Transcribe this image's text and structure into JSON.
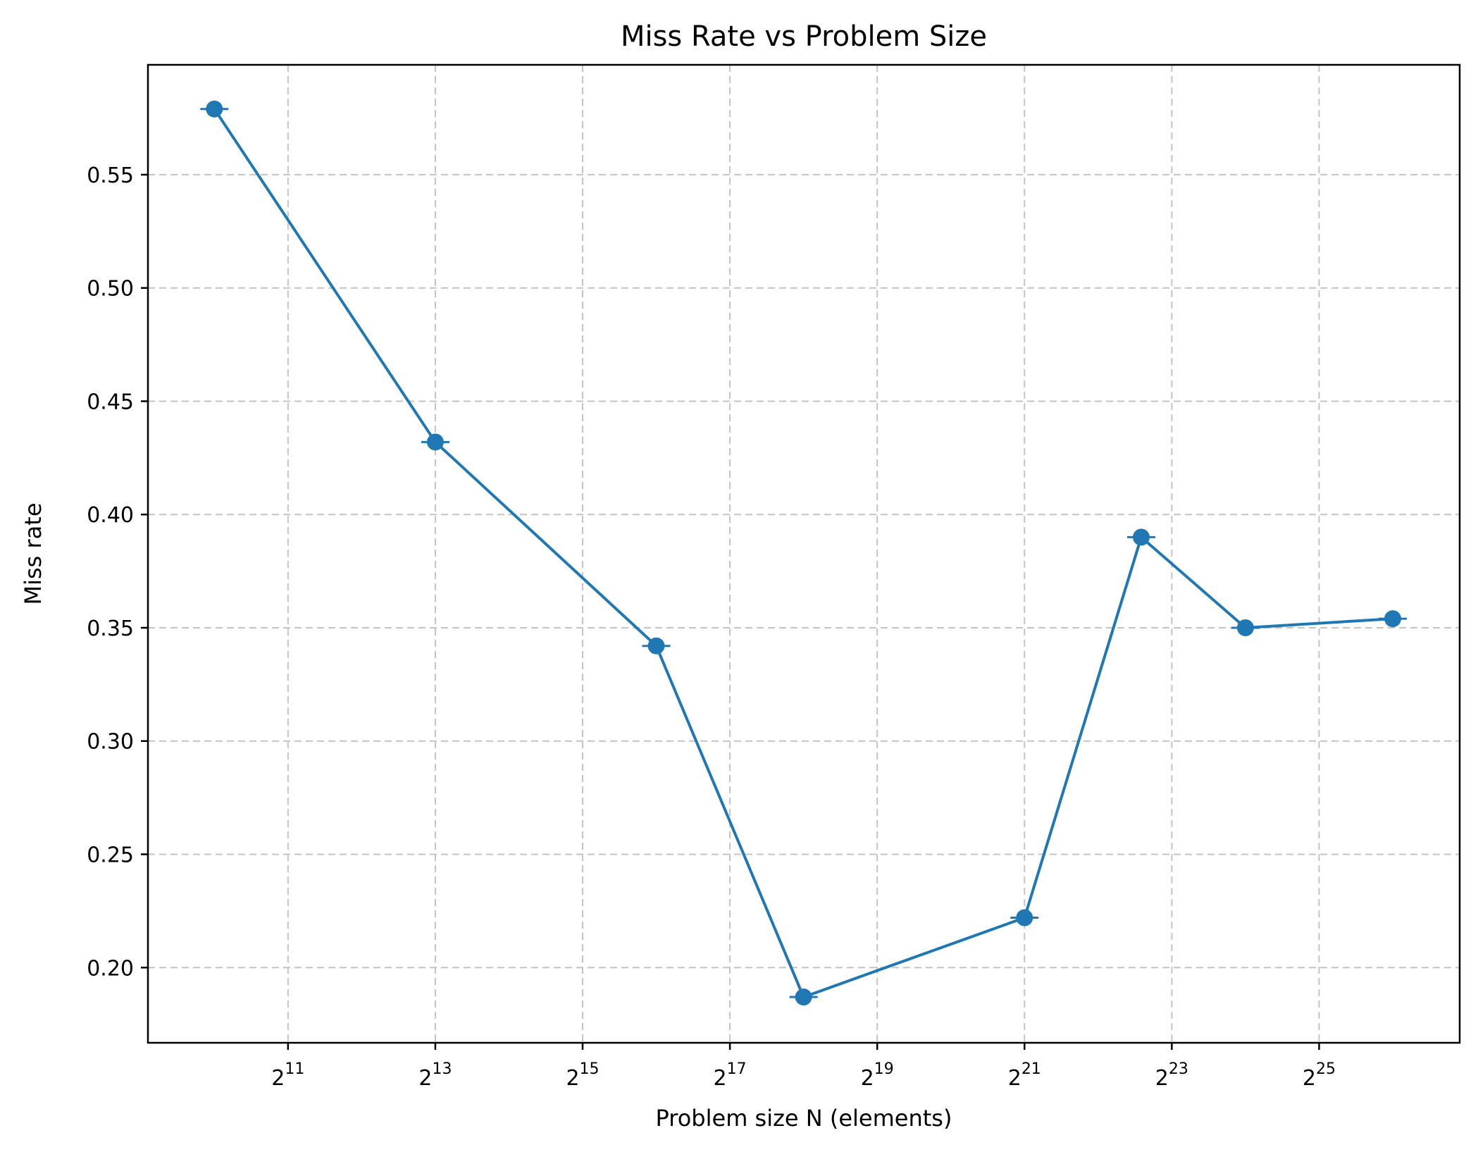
{
  "chart_data": {
    "type": "line",
    "title": "Miss Rate vs Problem Size",
    "xlabel": "Problem size N (elements)",
    "ylabel": "Miss rate",
    "x_scale": "log2",
    "x_ticks": [
      {
        "base": "2",
        "exp": "11",
        "value": 2048
      },
      {
        "base": "2",
        "exp": "13",
        "value": 8192
      },
      {
        "base": "2",
        "exp": "15",
        "value": 32768
      },
      {
        "base": "2",
        "exp": "17",
        "value": 131072
      },
      {
        "base": "2",
        "exp": "19",
        "value": 524288
      },
      {
        "base": "2",
        "exp": "21",
        "value": 2097152
      },
      {
        "base": "2",
        "exp": "23",
        "value": 8388608
      },
      {
        "base": "2",
        "exp": "25",
        "value": 33554432
      }
    ],
    "y_ticks": [
      "0.20",
      "0.25",
      "0.30",
      "0.35",
      "0.40",
      "0.45",
      "0.50",
      "0.55"
    ],
    "xlim": [
      548,
      126000000
    ],
    "ylim": [
      0.1668,
      0.5985
    ],
    "grid": true,
    "color": "#1f77b4",
    "series": [
      {
        "x": [
          1024,
          8192,
          65536,
          262144,
          2097152,
          6291456,
          16777216,
          67108864
        ],
        "y": [
          0.579,
          0.432,
          0.342,
          0.187,
          0.222,
          0.39,
          0.35,
          0.354
        ]
      }
    ]
  }
}
